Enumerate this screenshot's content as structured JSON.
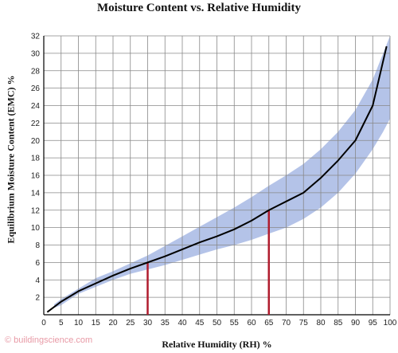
{
  "chart_data": {
    "type": "line",
    "title": "Moisture Content vs. Relative Humidity",
    "xlabel": "Relative Humidity (RH) %",
    "ylabel": "Equilibrium Moisture Content (EMC) %",
    "xlim": [
      0,
      100
    ],
    "ylim": [
      0,
      32
    ],
    "x_ticks": [
      0,
      5,
      10,
      15,
      20,
      25,
      30,
      35,
      40,
      45,
      50,
      55,
      60,
      65,
      70,
      75,
      80,
      85,
      90,
      95,
      100
    ],
    "y_ticks": [
      2,
      4,
      6,
      8,
      10,
      12,
      14,
      16,
      18,
      20,
      22,
      24,
      26,
      28,
      30,
      32
    ],
    "grid": true,
    "series": [
      {
        "type": "line",
        "color": "#000000",
        "x": [
          1,
          5,
          10,
          15,
          20,
          25,
          30,
          35,
          40,
          45,
          50,
          55,
          60,
          65,
          70,
          75,
          80,
          85,
          90,
          95,
          99
        ],
        "y": [
          0.3,
          1.5,
          2.7,
          3.6,
          4.5,
          5.3,
          6.0,
          6.7,
          7.5,
          8.3,
          9.0,
          9.8,
          10.8,
          12.0,
          13.0,
          14.0,
          15.7,
          17.7,
          20.0,
          24.0,
          30.8
        ]
      },
      {
        "type": "band",
        "color": "#b4c3e8",
        "x": [
          3,
          5,
          10,
          15,
          20,
          25,
          30,
          35,
          40,
          45,
          50,
          55,
          60,
          65,
          70,
          75,
          80,
          85,
          90,
          95,
          98,
          100
        ],
        "upper": [
          1.2,
          1.8,
          3.0,
          4.2,
          5.0,
          5.9,
          6.8,
          7.9,
          9.0,
          10.1,
          11.2,
          12.3,
          13.5,
          14.8,
          16.0,
          17.3,
          19.0,
          21.0,
          23.5,
          27.0,
          30.0,
          32.0
        ],
        "lower": [
          0.8,
          1.1,
          2.4,
          3.2,
          4.0,
          4.7,
          5.2,
          5.7,
          6.3,
          6.9,
          7.5,
          8.0,
          8.6,
          9.3,
          10.0,
          11.0,
          12.3,
          14.0,
          16.2,
          19.0,
          21.0,
          22.5
        ]
      }
    ],
    "markers": [
      {
        "x": 30,
        "y": 6.0,
        "color": "#b01c2e"
      },
      {
        "x": 65,
        "y": 12.0,
        "color": "#b01c2e"
      }
    ]
  },
  "credit": "© buildingscience.com"
}
